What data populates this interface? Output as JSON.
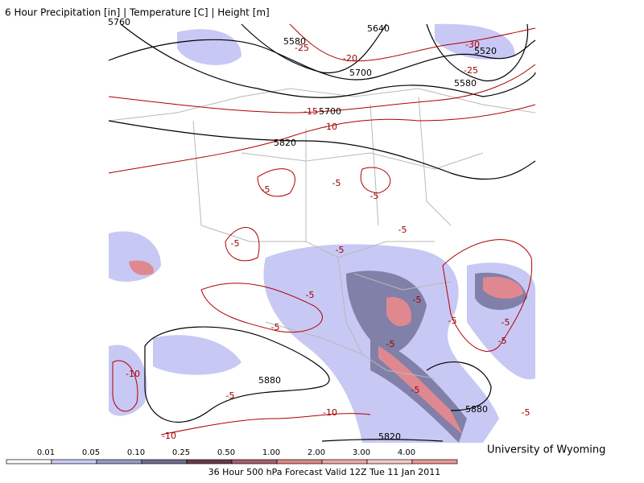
{
  "header": {
    "title": "6 Hour Precipitation [in] | Temperature [C] | Height [m]"
  },
  "map": {
    "height_labels": [
      "5760",
      "5580",
      "5640",
      "5520",
      "5700",
      "5580",
      "5700",
      "5820",
      "5880",
      "5880",
      "5820"
    ],
    "temperature_labels": [
      "-25",
      "-30",
      "-20",
      "-25",
      "-15",
      "-10",
      "-5",
      "-5",
      "-5",
      "-5",
      "-5",
      "-5",
      "-5",
      "-5",
      "-5",
      "-5",
      "-5",
      "-5",
      "-10",
      "-5",
      "-5",
      "-5",
      "-10",
      "-10",
      "-5"
    ]
  },
  "legend": {
    "labels": [
      "0.01",
      "0.05",
      "0.10",
      "0.25",
      "0.50",
      "1.00",
      "2.00",
      "3.00",
      "4.00"
    ]
  },
  "footer": {
    "caption": "36 Hour 500 hPa Forecast Valid 12Z Tue 11 Jan 2011",
    "credit": "University of Wyoming"
  }
}
